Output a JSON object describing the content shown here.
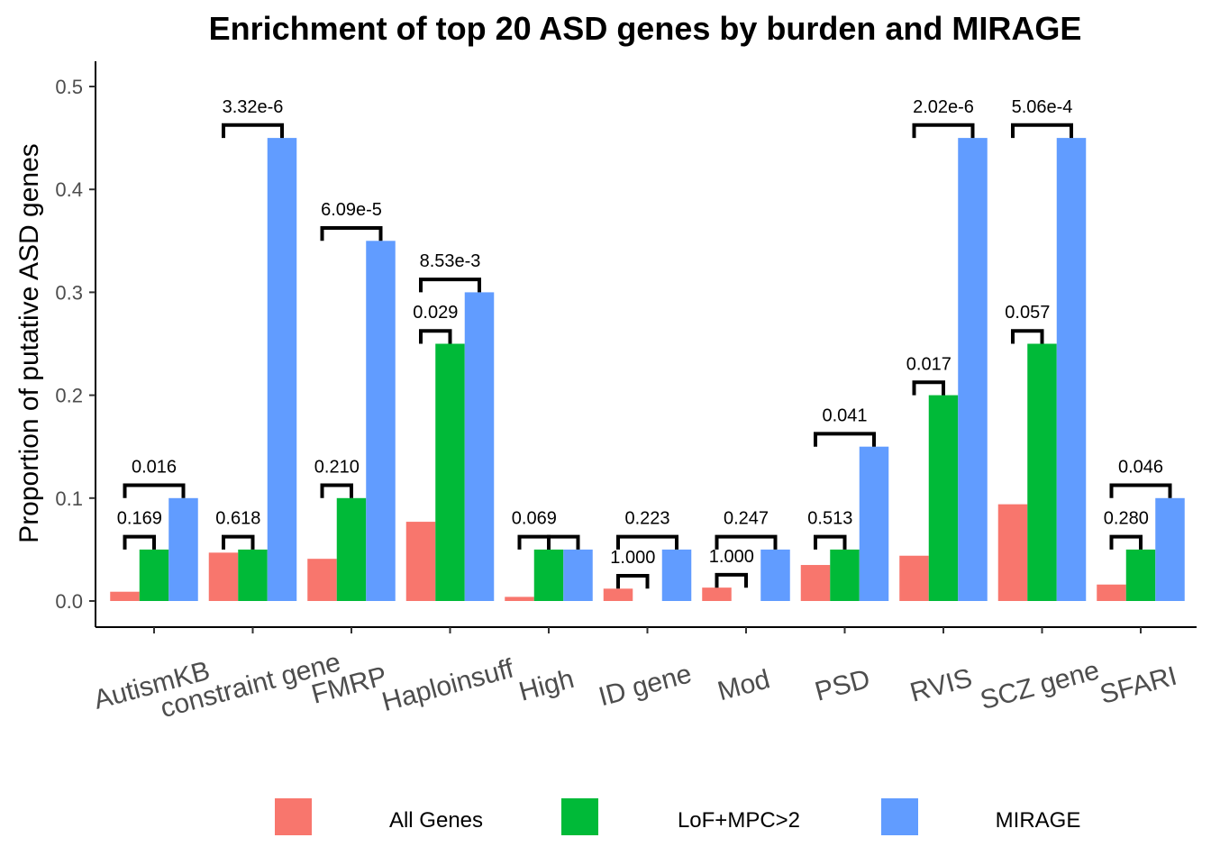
{
  "chart_data": {
    "type": "bar",
    "title": "Enrichment of top 20 ASD genes by burden and MIRAGE",
    "xlabel": "",
    "ylabel": "Proportion of putative ASD genes",
    "ylim": [
      0,
      0.5
    ],
    "yticks": [
      "0.0",
      "0.1",
      "0.2",
      "0.3",
      "0.4",
      "0.5"
    ],
    "grid": false,
    "legend_position": "bottom",
    "categories": [
      "AutismKB",
      "constraint gene",
      "FMRP",
      "Haploinsuff",
      "High",
      "ID gene",
      "Mod",
      "PSD",
      "RVIS",
      "SCZ gene",
      "SFARI"
    ],
    "series": [
      {
        "name": "All Genes",
        "color": "#F8766D",
        "values": [
          0.009,
          0.047,
          0.041,
          0.077,
          0.004,
          0.012,
          0.013,
          0.035,
          0.044,
          0.094,
          0.016
        ]
      },
      {
        "name": "LoF+MPC>2",
        "color": "#00BA38",
        "values": [
          0.05,
          0.05,
          0.1,
          0.25,
          0.05,
          0.0,
          0.0,
          0.05,
          0.2,
          0.25,
          0.05
        ]
      },
      {
        "name": "MIRAGE",
        "color": "#619CFF",
        "values": [
          0.1,
          0.45,
          0.35,
          0.3,
          0.05,
          0.05,
          0.05,
          0.15,
          0.45,
          0.45,
          0.1
        ]
      }
    ],
    "annotations": [
      {
        "category": "AutismKB",
        "from": "All Genes",
        "to": "LoF+MPC>2",
        "label": "0.169"
      },
      {
        "category": "AutismKB",
        "from": "All Genes",
        "to": "MIRAGE",
        "label": "0.016"
      },
      {
        "category": "constraint gene",
        "from": "All Genes",
        "to": "LoF+MPC>2",
        "label": "0.618"
      },
      {
        "category": "constraint gene",
        "from": "All Genes",
        "to": "MIRAGE",
        "label": "3.32e-6"
      },
      {
        "category": "FMRP",
        "from": "All Genes",
        "to": "LoF+MPC>2",
        "label": "0.210"
      },
      {
        "category": "FMRP",
        "from": "All Genes",
        "to": "MIRAGE",
        "label": "6.09e-5"
      },
      {
        "category": "Haploinsuff",
        "from": "All Genes",
        "to": "LoF+MPC>2",
        "label": "0.029"
      },
      {
        "category": "Haploinsuff",
        "from": "All Genes",
        "to": "MIRAGE",
        "label": "8.53e-3"
      },
      {
        "category": "High",
        "from": "All Genes",
        "to": "LoF+MPC>2",
        "label": "0.069"
      },
      {
        "category": "High",
        "from": "LoF+MPC>2",
        "to": "MIRAGE",
        "label": ""
      },
      {
        "category": "ID gene",
        "from": "All Genes",
        "to": "LoF+MPC>2",
        "label": "1.000"
      },
      {
        "category": "ID gene",
        "from": "All Genes",
        "to": "MIRAGE",
        "label": "0.223"
      },
      {
        "category": "Mod",
        "from": "All Genes",
        "to": "LoF+MPC>2",
        "label": "1.000"
      },
      {
        "category": "Mod",
        "from": "All Genes",
        "to": "MIRAGE",
        "label": "0.247"
      },
      {
        "category": "PSD",
        "from": "All Genes",
        "to": "LoF+MPC>2",
        "label": "0.513"
      },
      {
        "category": "PSD",
        "from": "All Genes",
        "to": "MIRAGE",
        "label": "0.041"
      },
      {
        "category": "RVIS",
        "from": "All Genes",
        "to": "LoF+MPC>2",
        "label": "0.017"
      },
      {
        "category": "RVIS",
        "from": "All Genes",
        "to": "MIRAGE",
        "label": "2.02e-6"
      },
      {
        "category": "SCZ gene",
        "from": "All Genes",
        "to": "LoF+MPC>2",
        "label": "0.057"
      },
      {
        "category": "SCZ gene",
        "from": "All Genes",
        "to": "MIRAGE",
        "label": "5.06e-4"
      },
      {
        "category": "SFARI",
        "from": "All Genes",
        "to": "LoF+MPC>2",
        "label": "0.280"
      },
      {
        "category": "SFARI",
        "from": "All Genes",
        "to": "MIRAGE",
        "label": "0.046"
      }
    ]
  }
}
